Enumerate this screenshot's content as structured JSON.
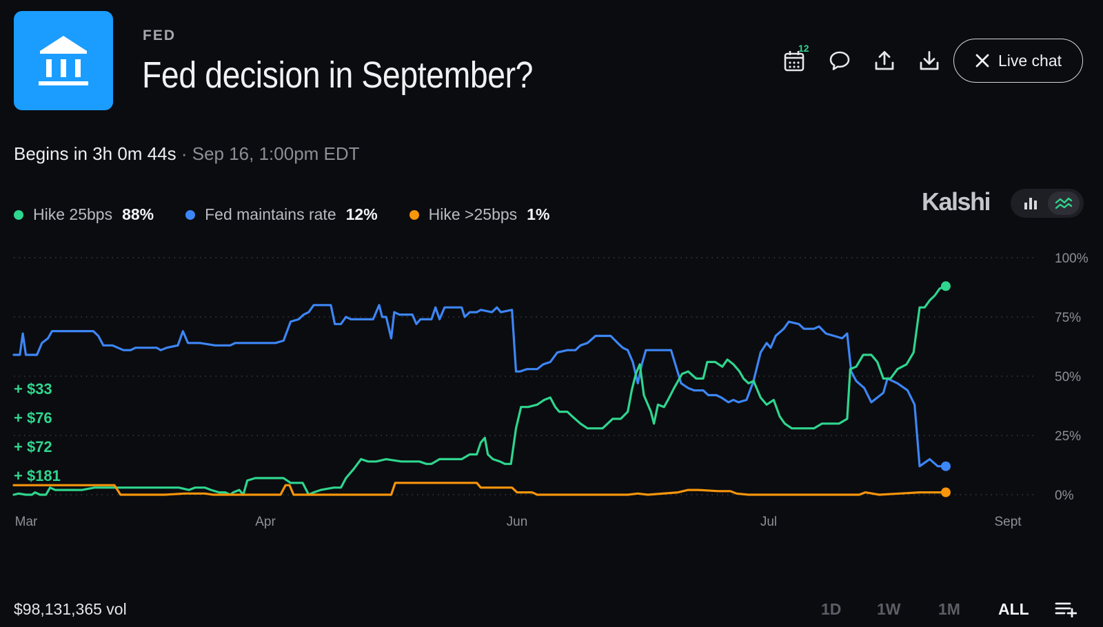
{
  "header": {
    "category": "FED",
    "title": "Fed decision in September?",
    "logo_icon": "bank-building-icon",
    "logo_color": "#1a9dff"
  },
  "toolbar": {
    "calendar_badge": "12",
    "live_chat_label": "Live chat",
    "icons": [
      "calendar-icon",
      "chat-bubble-icon",
      "share-upload-icon",
      "download-icon",
      "close-icon"
    ]
  },
  "schedule": {
    "countdown": "Begins in 3h 0m 44s",
    "separator": "·",
    "datetime": "Sep 16, 1:00pm EDT"
  },
  "legend": [
    {
      "name": "Hike 25bps",
      "value": "88%",
      "color": "#2fd68e"
    },
    {
      "name": "Fed maintains rate",
      "value": "12%",
      "color": "#3d86f6"
    },
    {
      "name": "Hike >25bps",
      "value": "1%",
      "color": "#f7950b"
    }
  ],
  "brand": "Kalshi",
  "view_toggle": {
    "options": [
      "bar-chart-icon",
      "line-chart-icon"
    ],
    "active": "line-chart-icon"
  },
  "payouts": [
    "+ $33",
    "+ $76",
    "+ $72",
    "+ $181"
  ],
  "chart_data": {
    "type": "line",
    "x_ticks": [
      "Mar",
      "Apr",
      "Jun",
      "Jul",
      "Sept"
    ],
    "y_ticks": [
      "100%",
      "75%",
      "50%",
      "25%",
      "0%"
    ],
    "ylim": [
      0,
      100
    ],
    "grid": true,
    "x_domain": [
      0,
      100
    ],
    "series": [
      {
        "name": "Fed maintains rate",
        "color": "#3d86f6",
        "points": [
          [
            0,
            59
          ],
          [
            0.6,
            59
          ],
          [
            0.9,
            68
          ],
          [
            1.2,
            59
          ],
          [
            2.3,
            59
          ],
          [
            2.8,
            64
          ],
          [
            3.4,
            66
          ],
          [
            3.8,
            69
          ],
          [
            4.5,
            69
          ],
          [
            5.2,
            69
          ],
          [
            6.5,
            69
          ],
          [
            7.9,
            69
          ],
          [
            8.4,
            67
          ],
          [
            8.9,
            63
          ],
          [
            9.8,
            63
          ],
          [
            10.9,
            61
          ],
          [
            11.6,
            61
          ],
          [
            12.1,
            62
          ],
          [
            13.5,
            62
          ],
          [
            14.2,
            62
          ],
          [
            14.6,
            61
          ],
          [
            15.2,
            62
          ],
          [
            16.3,
            63
          ],
          [
            16.8,
            69
          ],
          [
            17.3,
            64
          ],
          [
            18.5,
            64
          ],
          [
            20,
            63
          ],
          [
            21.5,
            63
          ],
          [
            22,
            64
          ],
          [
            23.5,
            64
          ],
          [
            26,
            64
          ],
          [
            26.8,
            65
          ],
          [
            27.5,
            73
          ],
          [
            28.3,
            74
          ],
          [
            28.8,
            76
          ],
          [
            29.3,
            77
          ],
          [
            29.8,
            80
          ],
          [
            31.5,
            80
          ],
          [
            31.9,
            72
          ],
          [
            32.5,
            72
          ],
          [
            33,
            75
          ],
          [
            33.5,
            74
          ],
          [
            35,
            74
          ],
          [
            35.7,
            74
          ],
          [
            36.3,
            80
          ],
          [
            36.6,
            75
          ],
          [
            37,
            75
          ],
          [
            37.5,
            66
          ],
          [
            37.8,
            77
          ],
          [
            38.3,
            76
          ],
          [
            39.6,
            76
          ],
          [
            40,
            72
          ],
          [
            40.4,
            74
          ],
          [
            41.5,
            74
          ],
          [
            41.9,
            79
          ],
          [
            42.3,
            74
          ],
          [
            42.8,
            79
          ],
          [
            44.5,
            79
          ],
          [
            44.8,
            75
          ],
          [
            45.3,
            77
          ],
          [
            46,
            77
          ],
          [
            46.4,
            78
          ],
          [
            47.5,
            77
          ],
          [
            48,
            79
          ],
          [
            48.4,
            77
          ],
          [
            49.5,
            78
          ],
          [
            49.9,
            52
          ],
          [
            50.3,
            52
          ],
          [
            51,
            53
          ],
          [
            52,
            53
          ],
          [
            52.6,
            55
          ],
          [
            53.3,
            56
          ],
          [
            54,
            60
          ],
          [
            55,
            61
          ],
          [
            55.8,
            61
          ],
          [
            56.3,
            63
          ],
          [
            57,
            64
          ],
          [
            57.8,
            67
          ],
          [
            59.3,
            67
          ],
          [
            60,
            64
          ],
          [
            60.5,
            62
          ],
          [
            61,
            61
          ],
          [
            61.5,
            56
          ],
          [
            62,
            47
          ],
          [
            62.4,
            55
          ],
          [
            62.8,
            61
          ],
          [
            63.5,
            61
          ],
          [
            64.5,
            61
          ],
          [
            65.3,
            61
          ],
          [
            65.8,
            54
          ],
          [
            66.3,
            47
          ],
          [
            67,
            45
          ],
          [
            67.6,
            44
          ],
          [
            68.5,
            44
          ],
          [
            69,
            42
          ],
          [
            69.8,
            42
          ],
          [
            70.3,
            41
          ],
          [
            71,
            39
          ],
          [
            71.5,
            40
          ],
          [
            72,
            39
          ],
          [
            72.8,
            40
          ],
          [
            73.5,
            48
          ],
          [
            74.2,
            60
          ],
          [
            74.8,
            64
          ],
          [
            75.2,
            62
          ],
          [
            75.7,
            67
          ],
          [
            76.5,
            70
          ],
          [
            77,
            73
          ],
          [
            78,
            72
          ],
          [
            78.5,
            70
          ],
          [
            79.5,
            70
          ],
          [
            80,
            71
          ],
          [
            80.7,
            68
          ],
          [
            81.5,
            67
          ],
          [
            82.3,
            66
          ],
          [
            82.8,
            68
          ],
          [
            83.2,
            52
          ],
          [
            83.7,
            48
          ],
          [
            84.5,
            45
          ],
          [
            85.2,
            39
          ],
          [
            85.8,
            41
          ],
          [
            86.4,
            43
          ],
          [
            86.8,
            49
          ],
          [
            87.8,
            47
          ],
          [
            88.8,
            44
          ],
          [
            89.5,
            38
          ],
          [
            90,
            12
          ],
          [
            91,
            15
          ],
          [
            91.8,
            12
          ],
          [
            92.6,
            12
          ]
        ]
      },
      {
        "name": "Hike 25bps",
        "color": "#2fd68e",
        "points": [
          [
            0,
            0
          ],
          [
            0.5,
            0.5
          ],
          [
            1.2,
            0
          ],
          [
            1.8,
            0
          ],
          [
            2.1,
            1
          ],
          [
            2.6,
            0
          ],
          [
            3.2,
            0
          ],
          [
            3.6,
            3
          ],
          [
            4.1,
            2
          ],
          [
            5,
            2
          ],
          [
            5.8,
            2
          ],
          [
            6.8,
            2
          ],
          [
            8,
            3
          ],
          [
            9.5,
            3
          ],
          [
            11,
            3
          ],
          [
            13,
            3
          ],
          [
            14.6,
            3
          ],
          [
            16.4,
            3
          ],
          [
            17.4,
            2
          ],
          [
            18,
            3
          ],
          [
            19,
            3
          ],
          [
            19.6,
            2
          ],
          [
            20.4,
            1
          ],
          [
            21,
            1
          ],
          [
            21.5,
            0
          ],
          [
            21.8,
            1
          ],
          [
            22.4,
            2
          ],
          [
            22.8,
            0
          ],
          [
            23.2,
            6
          ],
          [
            24,
            7
          ],
          [
            25.5,
            7
          ],
          [
            26.8,
            7
          ],
          [
            27.5,
            5
          ],
          [
            28,
            5
          ],
          [
            28.7,
            5
          ],
          [
            29.3,
            0
          ],
          [
            29.8,
            1
          ],
          [
            30.5,
            2
          ],
          [
            31.8,
            3
          ],
          [
            32.5,
            3
          ],
          [
            33,
            7
          ],
          [
            33.8,
            11
          ],
          [
            34.5,
            15
          ],
          [
            35.2,
            14
          ],
          [
            36,
            14
          ],
          [
            37,
            15
          ],
          [
            38.5,
            14
          ],
          [
            39.6,
            14
          ],
          [
            40.3,
            14
          ],
          [
            41,
            13
          ],
          [
            41.5,
            13
          ],
          [
            42.3,
            15
          ],
          [
            43,
            15
          ],
          [
            44.5,
            15
          ],
          [
            45.3,
            17
          ],
          [
            46,
            17
          ],
          [
            46.4,
            22
          ],
          [
            46.8,
            24
          ],
          [
            47.1,
            17
          ],
          [
            47.6,
            15
          ],
          [
            48.3,
            14
          ],
          [
            48.8,
            13
          ],
          [
            49.4,
            13
          ],
          [
            49.9,
            28
          ],
          [
            50.4,
            37
          ],
          [
            51.1,
            37
          ],
          [
            52,
            38
          ],
          [
            52.7,
            40
          ],
          [
            53.3,
            41
          ],
          [
            53.8,
            37
          ],
          [
            54.2,
            35
          ],
          [
            55,
            35
          ],
          [
            55.5,
            33
          ],
          [
            56.3,
            30
          ],
          [
            57,
            28
          ],
          [
            58,
            28
          ],
          [
            58.5,
            28
          ],
          [
            59,
            30
          ],
          [
            59.5,
            32
          ],
          [
            60.3,
            32
          ],
          [
            61,
            35
          ],
          [
            61.4,
            44
          ],
          [
            61.8,
            51
          ],
          [
            62.2,
            55
          ],
          [
            62.6,
            42
          ],
          [
            63.3,
            35
          ],
          [
            63.6,
            30
          ],
          [
            64,
            38
          ],
          [
            64.6,
            37
          ],
          [
            65,
            40
          ],
          [
            65.6,
            45
          ],
          [
            66.4,
            51
          ],
          [
            67,
            52
          ],
          [
            67.8,
            49
          ],
          [
            68.5,
            49
          ],
          [
            68.9,
            56
          ],
          [
            69.3,
            56
          ],
          [
            69.7,
            56
          ],
          [
            70.4,
            54
          ],
          [
            70.9,
            57
          ],
          [
            71.5,
            55
          ],
          [
            72.1,
            52
          ],
          [
            72.5,
            49
          ],
          [
            73,
            47
          ],
          [
            73.5,
            48
          ],
          [
            74.2,
            41
          ],
          [
            74.8,
            38
          ],
          [
            75.5,
            40
          ],
          [
            76.1,
            33
          ],
          [
            76.6,
            30
          ],
          [
            77.3,
            28
          ],
          [
            78.5,
            28
          ],
          [
            79.5,
            28
          ],
          [
            80.3,
            30
          ],
          [
            81.2,
            30
          ],
          [
            82,
            30
          ],
          [
            82.8,
            32
          ],
          [
            83.1,
            53
          ],
          [
            83.7,
            54
          ],
          [
            84.4,
            59
          ],
          [
            85.2,
            59
          ],
          [
            85.8,
            56
          ],
          [
            86.4,
            49
          ],
          [
            87.1,
            49
          ],
          [
            87.8,
            53
          ],
          [
            88.7,
            55
          ],
          [
            89.4,
            60
          ],
          [
            90,
            79
          ],
          [
            90.5,
            79
          ],
          [
            91,
            82
          ],
          [
            91.5,
            84
          ],
          [
            92,
            87
          ],
          [
            92.6,
            88
          ]
        ]
      },
      {
        "name": "Hike >25bps",
        "color": "#f7950b",
        "points": [
          [
            0,
            4
          ],
          [
            7,
            4
          ],
          [
            10,
            4
          ],
          [
            10.6,
            0
          ],
          [
            15,
            0
          ],
          [
            17,
            0.5
          ],
          [
            19,
            0.5
          ],
          [
            19.8,
            0
          ],
          [
            26.5,
            0
          ],
          [
            27,
            4
          ],
          [
            27.4,
            4
          ],
          [
            27.8,
            0
          ],
          [
            34.5,
            0
          ],
          [
            37.5,
            0
          ],
          [
            37.9,
            5
          ],
          [
            46,
            5
          ],
          [
            46.4,
            3
          ],
          [
            49.5,
            3
          ],
          [
            50,
            1
          ],
          [
            51.5,
            1
          ],
          [
            52,
            0
          ],
          [
            61,
            0
          ],
          [
            62,
            0.5
          ],
          [
            63,
            0
          ],
          [
            66,
            1
          ],
          [
            67,
            2
          ],
          [
            68,
            2
          ],
          [
            70,
            1.5
          ],
          [
            71.2,
            1.5
          ],
          [
            71.8,
            0.5
          ],
          [
            73,
            0
          ],
          [
            84,
            0
          ],
          [
            84.6,
            1
          ],
          [
            86,
            0
          ],
          [
            88,
            0.5
          ],
          [
            90,
            1
          ],
          [
            91.5,
            1
          ],
          [
            92.6,
            1
          ]
        ]
      }
    ]
  },
  "footer": {
    "volume": "$98,131,365 vol",
    "ranges": [
      "1D",
      "1W",
      "1M",
      "ALL"
    ],
    "active_range": "ALL",
    "menu_icon": "playlist-add-icon"
  }
}
